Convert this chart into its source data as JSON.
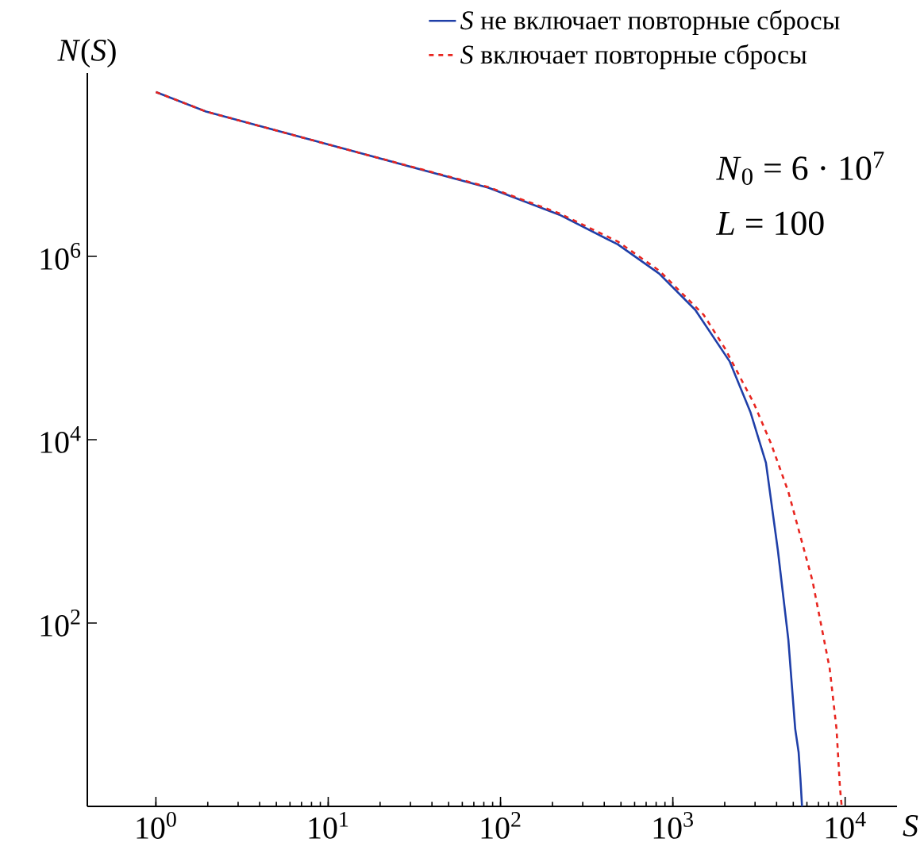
{
  "chart_data": {
    "type": "line",
    "xlabel": "*S*",
    "ylabel": "*N*(*S*)",
    "log": "xy",
    "legend": "top",
    "xlim": [
      0.4,
      20000
    ],
    "ylim": [
      1,
      100000000
    ],
    "xticks": [
      {
        "value": 1,
        "label": "10$^{0}$"
      },
      {
        "value": 10,
        "label": "10$^{1}$"
      },
      {
        "value": 100,
        "label": "10$^{2}$"
      },
      {
        "value": 1000,
        "label": "10$^{3}$"
      },
      {
        "value": 10000,
        "label": "10$^{4}$"
      }
    ],
    "yticks": [
      {
        "value": 100,
        "label": "10$^{2}$"
      },
      {
        "value": 10000,
        "label": "10$^{4}$"
      },
      {
        "value": 1000000,
        "label": "10$^{6}$"
      }
    ],
    "annotations": [
      "*N*$_{0}$ = 6 · 10$^{7}$",
      "*L* = 100"
    ],
    "series": [
      {
        "name": "*S* не включает повторные сбросы",
        "color": "#1f3fa8",
        "line_style": "solid",
        "x": [
          1,
          1.95,
          14,
          85,
          219,
          479,
          832,
          1350,
          2140,
          2820,
          3470,
          4070,
          4680,
          5130,
          5370,
          5500,
          5620
        ],
        "values": [
          62000000,
          38000000,
          14000000,
          5600000,
          2850000,
          1350000,
          650000,
          260000,
          71000,
          20000,
          5600,
          620,
          66,
          7,
          3.9,
          2,
          1
        ]
      },
      {
        "name": "*S* включает повторные сбросы",
        "color": "#e8251f",
        "line_style": "dashed",
        "x": [
          1,
          1.95,
          14,
          85,
          219,
          479,
          832,
          1510,
          2000,
          2950,
          3720,
          4680,
          6460,
          8130,
          8910,
          9330,
          9550
        ],
        "values": [
          62000000,
          38000000,
          14000000,
          5700000,
          2950000,
          1450000,
          700000,
          230000,
          100000,
          25000,
          9000,
          2700,
          290,
          32,
          7,
          1.6,
          1
        ]
      }
    ]
  }
}
